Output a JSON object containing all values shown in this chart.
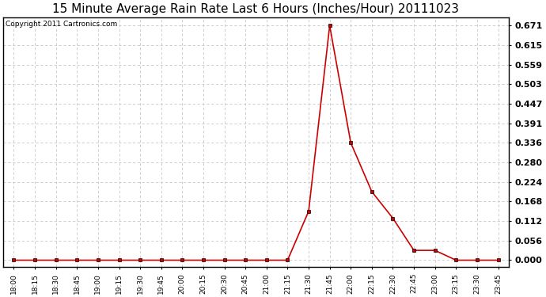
{
  "title": "15 Minute Average Rain Rate Last 6 Hours (Inches/Hour) 20111023",
  "copyright": "Copyright 2011 Cartronics.com",
  "x_labels": [
    "18:00",
    "18:15",
    "18:30",
    "18:45",
    "19:00",
    "19:15",
    "19:30",
    "19:45",
    "20:00",
    "20:15",
    "20:30",
    "20:45",
    "21:00",
    "21:15",
    "21:30",
    "21:45",
    "22:00",
    "22:15",
    "22:30",
    "22:45",
    "23:00",
    "23:15",
    "23:30",
    "23:45"
  ],
  "y_values": [
    0.0,
    0.0,
    0.0,
    0.0,
    0.0,
    0.0,
    0.0,
    0.0,
    0.0,
    0.0,
    0.0,
    0.0,
    0.0,
    0.0,
    0.14,
    0.671,
    0.336,
    0.196,
    0.12,
    0.028,
    0.028,
    0.0,
    0.0,
    0.0
  ],
  "y_ticks": [
    0.0,
    0.056,
    0.112,
    0.168,
    0.224,
    0.28,
    0.336,
    0.391,
    0.447,
    0.503,
    0.559,
    0.615,
    0.671
  ],
  "line_color": "#cc0000",
  "marker_color": "#000000",
  "bg_color": "#ffffff",
  "grid_color": "#c8c8c8",
  "title_fontsize": 11,
  "copyright_fontsize": 6.5,
  "ytick_fontsize": 8,
  "xtick_fontsize": 6.5
}
